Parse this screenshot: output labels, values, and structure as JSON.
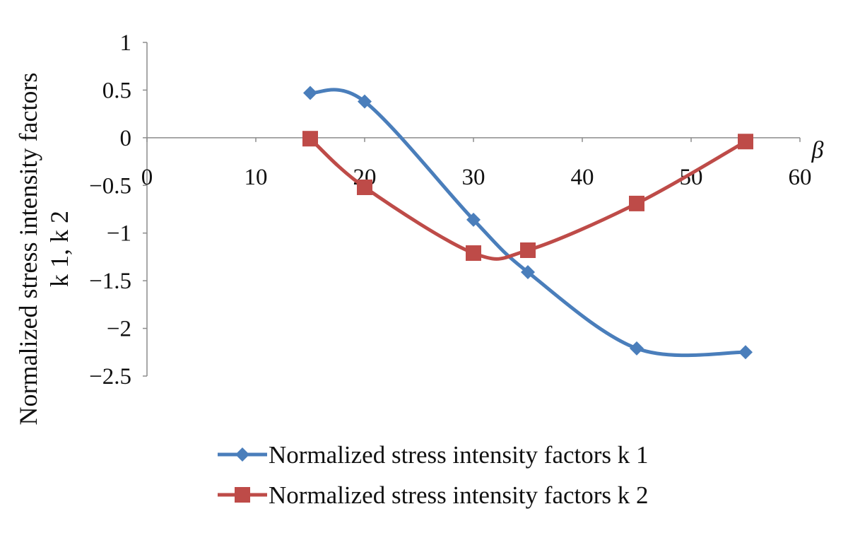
{
  "chart_data": {
    "type": "line",
    "title": "",
    "xlabel": "β",
    "ylabel": [
      "Normalized stress intensity factors",
      "k 1, k 2"
    ],
    "xlim": [
      0,
      60
    ],
    "ylim": [
      -2.5,
      1
    ],
    "x_ticks": [
      "0",
      "10",
      "20",
      "30",
      "40",
      "50",
      "60"
    ],
    "y_ticks": [
      "1",
      "0.5",
      "0",
      "−0.5",
      "−1",
      "−1.5",
      "−2",
      "−2.5"
    ],
    "grid": false,
    "smooth": true,
    "legend_position": "bottom-right",
    "series": [
      {
        "name": "Normalized stress intensity factors k 1",
        "color": "#4a7ebb",
        "marker": "diamond",
        "x": [
          15,
          20,
          30,
          35,
          45,
          55
        ],
        "y": [
          0.47,
          0.38,
          -0.86,
          -1.41,
          -2.21,
          -2.25
        ]
      },
      {
        "name": "Normalized stress intensity factors k 2",
        "color": "#be4b48",
        "marker": "square",
        "x": [
          15,
          20,
          30,
          35,
          45,
          55
        ],
        "y": [
          -0.01,
          -0.52,
          -1.21,
          -1.18,
          -0.69,
          -0.04
        ]
      }
    ]
  }
}
